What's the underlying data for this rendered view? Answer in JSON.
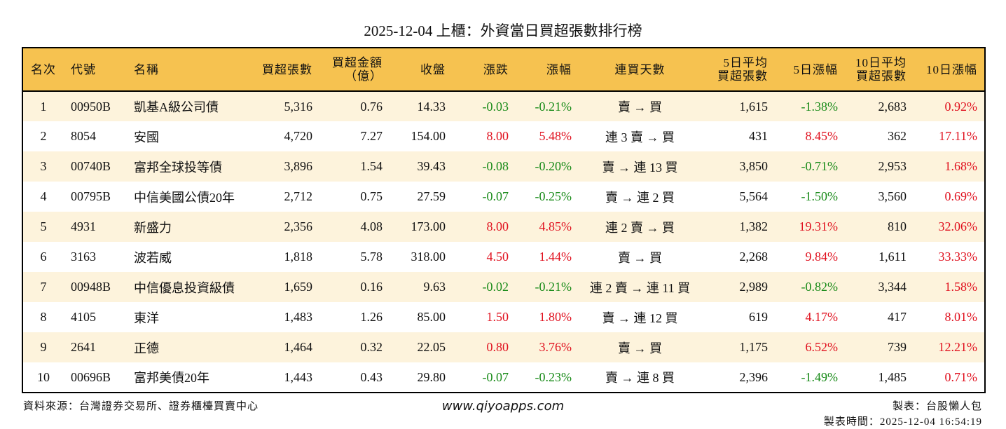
{
  "title": "2025-12-04 上櫃：外資當日買超張數排行榜",
  "columns": [
    "名次",
    "代號",
    "名稱",
    "買超張數",
    "買超金額\n（億）",
    "收盤",
    "漲跌",
    "漲幅",
    "連買天數",
    "5日平均\n買超張數",
    "5日漲幅",
    "10日平均\n買超張數",
    "10日漲幅"
  ],
  "colors": {
    "header_bg": "#f6c250",
    "row_alt": "#fdf3dc",
    "up": "#e0101e",
    "down": "#178a17"
  },
  "rows": [
    [
      "1",
      "00950B",
      "凱基A級公司債",
      "5,316",
      "0.76",
      "14.33",
      "-0.03",
      "-0.21%",
      "賣 → 買",
      "1,615",
      "-1.38%",
      "2,683",
      "0.92%"
    ],
    [
      "2",
      "8054",
      "安國",
      "4,720",
      "7.27",
      "154.00",
      "8.00",
      "5.48%",
      "連 3 賣 → 買",
      "431",
      "8.45%",
      "362",
      "17.11%"
    ],
    [
      "3",
      "00740B",
      "富邦全球投等債",
      "3,896",
      "1.54",
      "39.43",
      "-0.08",
      "-0.20%",
      "賣 → 連 13 買",
      "3,850",
      "-0.71%",
      "2,953",
      "1.68%"
    ],
    [
      "4",
      "00795B",
      "中信美國公債20年",
      "2,712",
      "0.75",
      "27.59",
      "-0.07",
      "-0.25%",
      "賣 → 連 2 買",
      "5,564",
      "-1.50%",
      "3,560",
      "0.69%"
    ],
    [
      "5",
      "4931",
      "新盛力",
      "2,356",
      "4.08",
      "173.00",
      "8.00",
      "4.85%",
      "連 2 賣 → 買",
      "1,382",
      "19.31%",
      "810",
      "32.06%"
    ],
    [
      "6",
      "3163",
      "波若威",
      "1,818",
      "5.78",
      "318.00",
      "4.50",
      "1.44%",
      "賣 → 買",
      "2,268",
      "9.84%",
      "1,611",
      "33.33%"
    ],
    [
      "7",
      "00948B",
      "中信優息投資級債",
      "1,659",
      "0.16",
      "9.63",
      "-0.02",
      "-0.21%",
      "連 2 賣 → 連 11 買",
      "2,989",
      "-0.82%",
      "3,344",
      "1.58%"
    ],
    [
      "8",
      "4105",
      "東洋",
      "1,483",
      "1.26",
      "85.00",
      "1.50",
      "1.80%",
      "賣 → 連 12 買",
      "619",
      "4.17%",
      "417",
      "8.01%"
    ],
    [
      "9",
      "2641",
      "正德",
      "1,464",
      "0.32",
      "22.05",
      "0.80",
      "3.76%",
      "賣 → 買",
      "1,175",
      "6.52%",
      "739",
      "12.21%"
    ],
    [
      "10",
      "00696B",
      "富邦美債20年",
      "1,443",
      "0.43",
      "29.80",
      "-0.07",
      "-0.23%",
      "賣 → 連 8 買",
      "2,396",
      "-1.49%",
      "1,485",
      "0.71%"
    ]
  ],
  "footer": {
    "source": "資料來源：台灣證券交易所、證券櫃檯買賣中心",
    "website": "www.qiyoapps.com",
    "author": "製表：台股懶人包",
    "time": "製表時間：2025-12-04 16:54:19"
  }
}
